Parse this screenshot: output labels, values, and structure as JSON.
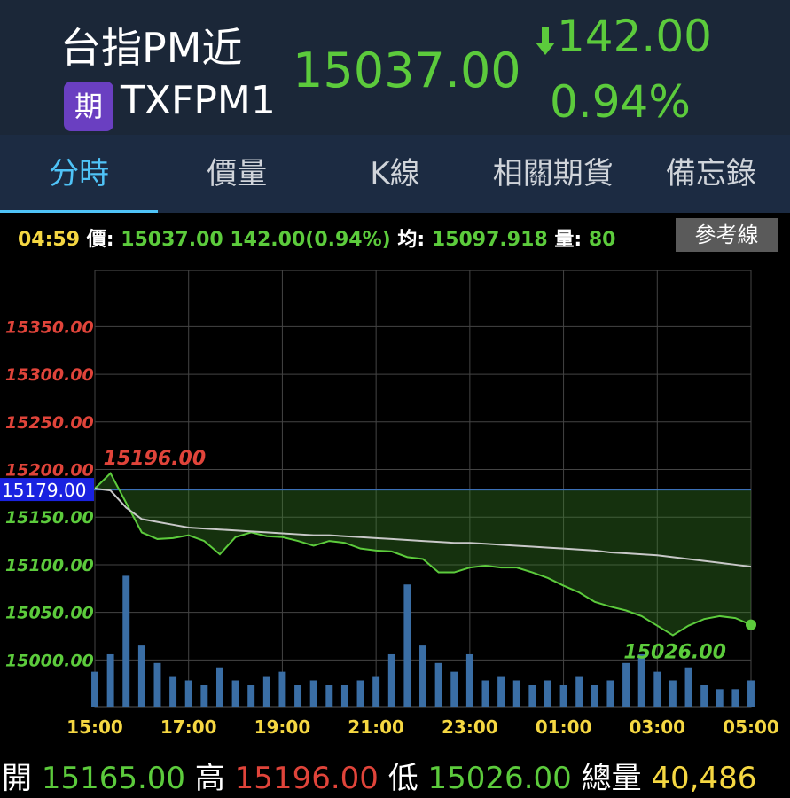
{
  "header": {
    "name": "台指PM近",
    "badge": "期",
    "code": "TXFPM1",
    "price": "15037.00",
    "change": "142.00",
    "change_pct": "0.94%"
  },
  "tabs": [
    "分時",
    "價量",
    "K線",
    "相關期貨",
    "備忘錄"
  ],
  "info": {
    "time": "04:59",
    "price_label": "價:",
    "price": "15037.00",
    "change": "142.00(0.94%)",
    "avg_label": "均:",
    "avg": "15097.918",
    "vol_label": "量:",
    "vol": "80",
    "button": "參考線"
  },
  "chart_data": {
    "type": "line",
    "x": [
      "15:00",
      "15:20",
      "15:40",
      "16:00",
      "16:20",
      "16:40",
      "17:00",
      "17:20",
      "17:40",
      "18:00",
      "18:20",
      "18:40",
      "19:00",
      "19:20",
      "19:40",
      "20:00",
      "20:20",
      "20:40",
      "21:00",
      "21:20",
      "21:40",
      "22:00",
      "22:20",
      "22:40",
      "23:00",
      "23:20",
      "23:40",
      "00:00",
      "00:20",
      "00:40",
      "01:00",
      "01:20",
      "01:40",
      "02:00",
      "02:20",
      "02:40",
      "03:00",
      "03:20",
      "03:40",
      "04:00",
      "04:20",
      "04:40",
      "05:00"
    ],
    "series": [
      {
        "name": "價",
        "color": "#5ccb3c",
        "values": [
          15180,
          15196,
          15165,
          15134,
          15127,
          15128,
          15131,
          15125,
          15111,
          15129,
          15134,
          15130,
          15129,
          15125,
          15120,
          15125,
          15123,
          15117,
          15115,
          15114,
          15108,
          15106,
          15092,
          15092,
          15097,
          15099,
          15097,
          15097,
          15092,
          15086,
          15078,
          15071,
          15061,
          15056,
          15052,
          15046,
          15036,
          15026,
          15036,
          15043,
          15046,
          15044,
          15037
        ]
      },
      {
        "name": "均",
        "color": "#c8c8c8",
        "values": [
          15180,
          15178,
          15160,
          15148,
          15145,
          15142,
          15139,
          15138,
          15137,
          15136,
          15135,
          15134,
          15133,
          15132,
          15131,
          15131,
          15130,
          15129,
          15128,
          15127,
          15126,
          15125,
          15124,
          15123,
          15123,
          15122,
          15121,
          15120,
          15119,
          15118,
          15117,
          15116,
          15115,
          15113,
          15112,
          15111,
          15110,
          15108,
          15106,
          15104,
          15102,
          15100,
          15098
        ]
      },
      {
        "name": "量",
        "color": "#3a6ea5",
        "axis": "y2",
        "values": [
          8,
          12,
          30,
          14,
          10,
          7,
          6,
          5,
          9,
          6,
          5,
          7,
          8,
          5,
          6,
          5,
          5,
          6,
          7,
          12,
          28,
          14,
          10,
          8,
          12,
          6,
          7,
          6,
          5,
          6,
          5,
          7,
          5,
          6,
          10,
          12,
          8,
          6,
          9,
          5,
          4,
          4,
          6
        ]
      }
    ],
    "ylim": [
      14951,
      15409
    ],
    "yticks": [
      {
        "value": 15000,
        "label": "15000.00"
      },
      {
        "value": 15050,
        "label": "15050.00"
      },
      {
        "value": 15100,
        "label": "15100.00"
      },
      {
        "value": 15150,
        "label": "15150.00"
      },
      {
        "value": 15200,
        "label": "15200.00"
      },
      {
        "value": 15250,
        "label": "15250.00"
      },
      {
        "value": 15300,
        "label": "15300.00"
      },
      {
        "value": 15350,
        "label": "15350.00"
      }
    ],
    "y2lim": [
      0,
      100
    ],
    "xticks": [
      "15:00",
      "17:00",
      "19:00",
      "21:00",
      "23:00",
      "01:00",
      "03:00",
      "05:00"
    ],
    "reference": {
      "value": 15179,
      "label": "15179.00",
      "color": "#3b6fb6"
    },
    "annotations": [
      {
        "x": "15:20",
        "value": 15196,
        "label": "15196.00",
        "color": "#e0443a"
      },
      {
        "x": "03:20",
        "value": 15026,
        "label": "15026.00",
        "color": "#5ccb3c"
      }
    ],
    "grid": true
  },
  "footer": {
    "open_label": "開",
    "open": "15165.00",
    "high_label": "高",
    "high": "15196.00",
    "low_label": "低",
    "low": "15026.00",
    "vol_label": "總量",
    "vol": "40,486"
  }
}
